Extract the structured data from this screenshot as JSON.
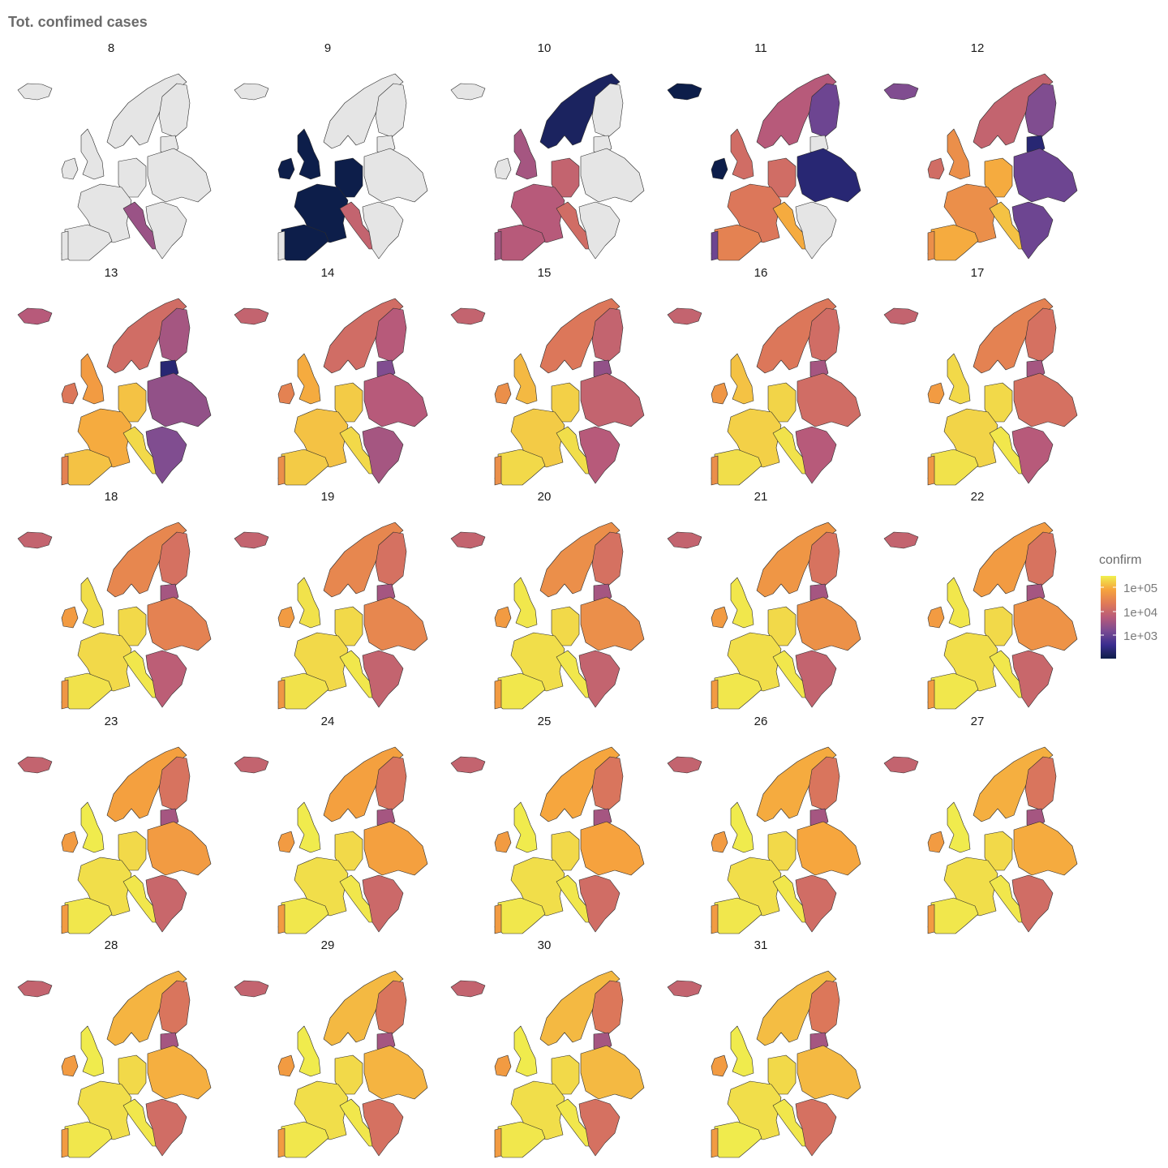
{
  "title": "Tot. confimed cases",
  "legend": {
    "title": "confirm",
    "ticks": [
      {
        "label": "1e+05",
        "value": 100000
      },
      {
        "label": "1e+04",
        "value": 10000
      },
      {
        "label": "1e+03",
        "value": 1000
      }
    ],
    "colors": [
      "#0d1e4a",
      "#3a2d8f",
      "#7a4b92",
      "#b75a7a",
      "#e07a57",
      "#f6a33d",
      "#f0f04e"
    ],
    "na_color": "#e5e5e5"
  },
  "map": {
    "type": "choropleth-facets",
    "region": "Europe",
    "variable": "confirm",
    "scale": "log10",
    "facet_labels": [
      "8",
      "9",
      "10",
      "11",
      "12",
      "13",
      "14",
      "15",
      "16",
      "17",
      "18",
      "19",
      "20",
      "21",
      "22",
      "23",
      "24",
      "25",
      "26",
      "27",
      "28",
      "29",
      "30",
      "31"
    ],
    "panels": [
      {
        "label": "8",
        "levels": {
          "is": null,
          "gb": null,
          "ie": null,
          "scan": null,
          "fi": null,
          "fr": null,
          "es": null,
          "pt": null,
          "de": null,
          "it": 0.42,
          "east": null,
          "balkan": null,
          "baltic": null
        }
      },
      {
        "label": "9",
        "levels": {
          "is": null,
          "gb": 0.0,
          "ie": 0.0,
          "scan": null,
          "fi": null,
          "fr": 0.0,
          "es": 0.0,
          "pt": null,
          "de": 0.0,
          "it": 0.55,
          "east": null,
          "balkan": null,
          "baltic": null
        }
      },
      {
        "label": "10",
        "levels": {
          "is": null,
          "gb": 0.45,
          "ie": null,
          "scan": 0.05,
          "fi": null,
          "fr": 0.5,
          "es": 0.5,
          "pt": 0.45,
          "de": 0.55,
          "it": 0.6,
          "east": null,
          "balkan": null,
          "baltic": null
        }
      },
      {
        "label": "11",
        "levels": {
          "is": 0.0,
          "gb": 0.6,
          "ie": 0.0,
          "scan": 0.5,
          "fi": 0.3,
          "fr": 0.65,
          "es": 0.7,
          "pt": 0.3,
          "de": 0.6,
          "it": 0.85,
          "east": 0.1,
          "balkan": null,
          "baltic": null
        }
      },
      {
        "label": "12",
        "levels": {
          "is": 0.35,
          "gb": 0.75,
          "ie": 0.6,
          "scan": 0.55,
          "fi": 0.35,
          "fr": 0.75,
          "es": 0.85,
          "pt": 0.75,
          "de": 0.85,
          "it": 0.9,
          "east": 0.3,
          "balkan": 0.3,
          "baltic": 0.1
        }
      },
      {
        "label": "13",
        "levels": {
          "is": 0.5,
          "gb": 0.8,
          "ie": 0.65,
          "scan": 0.6,
          "fi": 0.45,
          "fr": 0.85,
          "es": 0.9,
          "pt": 0.7,
          "de": 0.9,
          "it": 0.95,
          "east": 0.4,
          "balkan": 0.35,
          "baltic": 0.1
        }
      },
      {
        "label": "14",
        "levels": {
          "is": 0.55,
          "gb": 0.85,
          "ie": 0.7,
          "scan": 0.6,
          "fi": 0.5,
          "fr": 0.9,
          "es": 0.92,
          "pt": 0.75,
          "de": 0.92,
          "it": 0.95,
          "east": 0.5,
          "balkan": 0.45,
          "baltic": 0.35
        }
      },
      {
        "label": "15",
        "levels": {
          "is": 0.55,
          "gb": 0.88,
          "ie": 0.75,
          "scan": 0.65,
          "fi": 0.55,
          "fr": 0.92,
          "es": 0.95,
          "pt": 0.75,
          "de": 0.93,
          "it": 0.96,
          "east": 0.55,
          "balkan": 0.5,
          "baltic": 0.4
        }
      },
      {
        "label": "16",
        "levels": {
          "is": 0.55,
          "gb": 0.9,
          "ie": 0.78,
          "scan": 0.65,
          "fi": 0.6,
          "fr": 0.93,
          "es": 0.96,
          "pt": 0.75,
          "de": 0.94,
          "it": 0.97,
          "east": 0.6,
          "balkan": 0.5,
          "baltic": 0.45
        }
      },
      {
        "label": "17",
        "levels": {
          "is": 0.55,
          "gb": 0.95,
          "ie": 0.8,
          "scan": 0.7,
          "fi": 0.62,
          "fr": 0.94,
          "es": 0.97,
          "pt": 0.78,
          "de": 0.95,
          "it": 0.98,
          "east": 0.62,
          "balkan": 0.5,
          "baltic": 0.45
        }
      },
      {
        "label": "18",
        "levels": {
          "is": 0.55,
          "gb": 0.96,
          "ie": 0.8,
          "scan": 0.72,
          "fi": 0.62,
          "fr": 0.95,
          "es": 0.97,
          "pt": 0.78,
          "de": 0.95,
          "it": 0.98,
          "east": 0.7,
          "balkan": 0.52,
          "baltic": 0.45
        }
      },
      {
        "label": "19",
        "levels": {
          "is": 0.55,
          "gb": 0.97,
          "ie": 0.8,
          "scan": 0.72,
          "fi": 0.62,
          "fr": 0.95,
          "es": 0.97,
          "pt": 0.78,
          "de": 0.95,
          "it": 0.98,
          "east": 0.72,
          "balkan": 0.55,
          "baltic": 0.45
        }
      },
      {
        "label": "20",
        "levels": {
          "is": 0.55,
          "gb": 0.98,
          "ie": 0.8,
          "scan": 0.75,
          "fi": 0.62,
          "fr": 0.96,
          "es": 0.98,
          "pt": 0.8,
          "de": 0.95,
          "it": 0.98,
          "east": 0.75,
          "balkan": 0.55,
          "baltic": 0.45
        }
      },
      {
        "label": "21",
        "levels": {
          "is": 0.55,
          "gb": 0.98,
          "ie": 0.8,
          "scan": 0.78,
          "fi": 0.63,
          "fr": 0.96,
          "es": 0.98,
          "pt": 0.8,
          "de": 0.95,
          "it": 0.98,
          "east": 0.76,
          "balkan": 0.55,
          "baltic": 0.45
        }
      },
      {
        "label": "22",
        "levels": {
          "is": 0.55,
          "gb": 0.98,
          "ie": 0.8,
          "scan": 0.8,
          "fi": 0.63,
          "fr": 0.96,
          "es": 0.98,
          "pt": 0.8,
          "de": 0.95,
          "it": 0.98,
          "east": 0.77,
          "balkan": 0.57,
          "baltic": 0.45
        }
      },
      {
        "label": "23",
        "levels": {
          "is": 0.55,
          "gb": 0.99,
          "ie": 0.8,
          "scan": 0.82,
          "fi": 0.63,
          "fr": 0.96,
          "es": 0.98,
          "pt": 0.8,
          "de": 0.95,
          "it": 0.98,
          "east": 0.8,
          "balkan": 0.57,
          "baltic": 0.45
        }
      },
      {
        "label": "24",
        "levels": {
          "is": 0.55,
          "gb": 0.99,
          "ie": 0.8,
          "scan": 0.82,
          "fi": 0.63,
          "fr": 0.96,
          "es": 0.98,
          "pt": 0.8,
          "de": 0.95,
          "it": 0.98,
          "east": 0.82,
          "balkan": 0.58,
          "baltic": 0.45
        }
      },
      {
        "label": "25",
        "levels": {
          "is": 0.55,
          "gb": 0.99,
          "ie": 0.8,
          "scan": 0.84,
          "fi": 0.64,
          "fr": 0.96,
          "es": 0.98,
          "pt": 0.8,
          "de": 0.95,
          "it": 0.98,
          "east": 0.83,
          "balkan": 0.6,
          "baltic": 0.45
        }
      },
      {
        "label": "26",
        "levels": {
          "is": 0.55,
          "gb": 0.99,
          "ie": 0.8,
          "scan": 0.85,
          "fi": 0.64,
          "fr": 0.96,
          "es": 0.98,
          "pt": 0.8,
          "de": 0.95,
          "it": 0.98,
          "east": 0.84,
          "balkan": 0.6,
          "baltic": 0.45
        }
      },
      {
        "label": "27",
        "levels": {
          "is": 0.55,
          "gb": 0.99,
          "ie": 0.8,
          "scan": 0.86,
          "fi": 0.64,
          "fr": 0.96,
          "es": 0.98,
          "pt": 0.8,
          "de": 0.95,
          "it": 0.98,
          "east": 0.85,
          "balkan": 0.6,
          "baltic": 0.45
        }
      },
      {
        "label": "28",
        "levels": {
          "is": 0.55,
          "gb": 0.99,
          "ie": 0.8,
          "scan": 0.87,
          "fi": 0.64,
          "fr": 0.96,
          "es": 0.98,
          "pt": 0.8,
          "de": 0.95,
          "it": 0.98,
          "east": 0.86,
          "balkan": 0.6,
          "baltic": 0.45
        }
      },
      {
        "label": "29",
        "levels": {
          "is": 0.55,
          "gb": 0.99,
          "ie": 0.8,
          "scan": 0.88,
          "fi": 0.64,
          "fr": 0.96,
          "es": 0.98,
          "pt": 0.8,
          "de": 0.95,
          "it": 0.98,
          "east": 0.87,
          "balkan": 0.62,
          "baltic": 0.45
        }
      },
      {
        "label": "30",
        "levels": {
          "is": 0.55,
          "gb": 0.99,
          "ie": 0.8,
          "scan": 0.88,
          "fi": 0.65,
          "fr": 0.96,
          "es": 0.98,
          "pt": 0.8,
          "de": 0.95,
          "it": 0.98,
          "east": 0.88,
          "balkan": 0.62,
          "baltic": 0.45
        }
      },
      {
        "label": "31",
        "levels": {
          "is": 0.55,
          "gb": 0.99,
          "ie": 0.8,
          "scan": 0.89,
          "fi": 0.65,
          "fr": 0.96,
          "es": 0.99,
          "pt": 0.8,
          "de": 0.95,
          "it": 0.98,
          "east": 0.88,
          "balkan": 0.62,
          "baltic": 0.45
        }
      }
    ]
  }
}
